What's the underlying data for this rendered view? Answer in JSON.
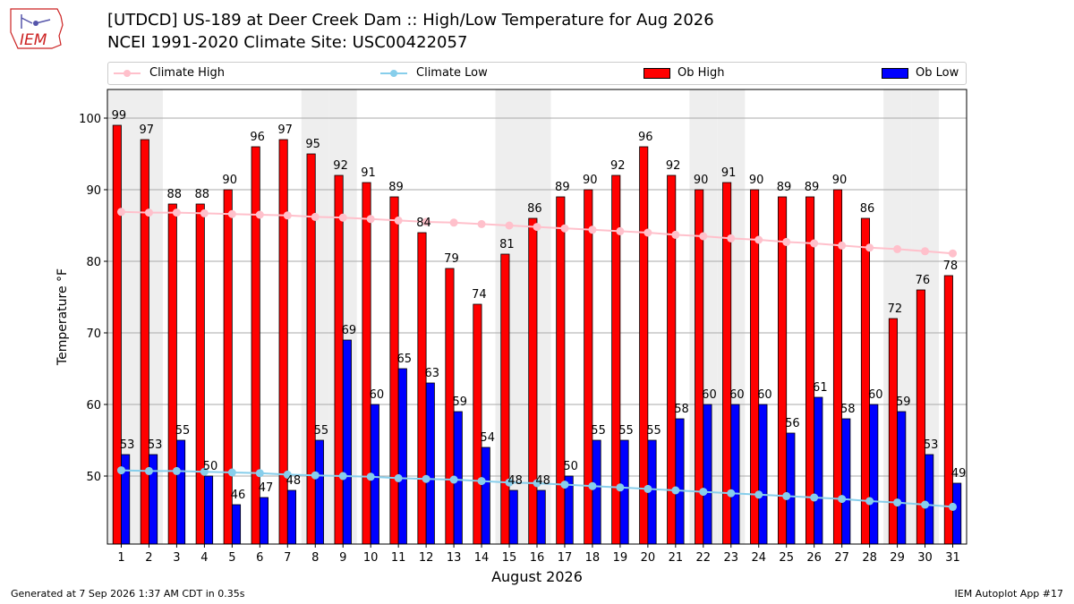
{
  "header": {
    "title_line1": "[UTDCD] US-189 at Deer Creek Dam  :: High/Low Temperature for Aug 2026",
    "title_line2": "NCEI 1991-2020 Climate Site: USC00422057"
  },
  "logo": {
    "text": "IEM",
    "color": "#cc2222"
  },
  "footer": {
    "left": "Generated at 7 Sep 2026 1:37 AM CDT in 0.35s",
    "right": "IEM Autoplot App #17"
  },
  "legend": {
    "climate_high": "Climate High",
    "climate_low": "Climate Low",
    "ob_high": "Ob High",
    "ob_low": "Ob Low",
    "placement": "top, above plot"
  },
  "colors": {
    "ob_high": "#ff0000",
    "ob_low": "#0000ff",
    "climate_high": "#ffc0cb",
    "climate_low": "#87ceeb",
    "weekend_shade": "#eeeeee",
    "grid": "#aaaaaa"
  },
  "chart_data": {
    "type": "bar",
    "xlabel": "August 2026",
    "ylabel": "Temperature °F",
    "ylim": [
      40.5,
      104
    ],
    "yticks": [
      50,
      60,
      70,
      80,
      90,
      100
    ],
    "grid": true,
    "categories": [
      "1",
      "2",
      "3",
      "4",
      "5",
      "6",
      "7",
      "8",
      "9",
      "10",
      "11",
      "12",
      "13",
      "14",
      "15",
      "16",
      "17",
      "18",
      "19",
      "20",
      "21",
      "22",
      "23",
      "24",
      "25",
      "26",
      "27",
      "28",
      "29",
      "30",
      "31"
    ],
    "weekend_days": [
      1,
      2,
      8,
      9,
      15,
      16,
      22,
      23,
      29,
      30
    ],
    "series": [
      {
        "name": "Ob High",
        "kind": "bar",
        "values": [
          99,
          97,
          88,
          88,
          90,
          96,
          97,
          95,
          92,
          91,
          89,
          84,
          79,
          74,
          81,
          86,
          89,
          90,
          92,
          96,
          92,
          90,
          91,
          90,
          89,
          89,
          90,
          86,
          72,
          76,
          78
        ],
        "labels": [
          "99",
          "97",
          "88",
          "88",
          "90",
          "96",
          "97",
          "95",
          "92",
          "91",
          "89",
          "84",
          "79",
          "74",
          "81",
          "86",
          "89",
          "90",
          "92",
          "96",
          "92",
          "90",
          "91",
          "90",
          "89",
          "89",
          "90",
          "86",
          "72",
          "76",
          "78"
        ]
      },
      {
        "name": "Ob Low",
        "kind": "bar",
        "values": [
          53,
          53,
          55,
          50,
          46,
          47,
          48,
          55,
          69,
          60,
          65,
          63,
          59,
          54,
          48,
          48,
          50,
          55,
          55,
          55,
          58,
          60,
          60,
          60,
          56,
          61,
          58,
          60,
          59,
          53,
          49
        ],
        "labels": [
          "53",
          "53",
          "55",
          "50",
          "46",
          "47",
          "48",
          "55",
          "69",
          "60",
          "65",
          "63",
          "59",
          "54",
          "48",
          "48",
          "50",
          "55",
          "55",
          "55",
          "58",
          "60",
          "60",
          "60",
          "56",
          "61",
          "58",
          "60",
          "59",
          "53",
          "49"
        ]
      },
      {
        "name": "Climate High",
        "kind": "line",
        "values": [
          86.9,
          86.8,
          86.8,
          86.7,
          86.6,
          86.5,
          86.4,
          86.2,
          86.1,
          85.9,
          85.7,
          85.5,
          85.4,
          85.2,
          85.0,
          84.8,
          84.6,
          84.4,
          84.2,
          84.0,
          83.7,
          83.5,
          83.2,
          83.0,
          82.7,
          82.5,
          82.2,
          81.9,
          81.7,
          81.4,
          81.1
        ]
      },
      {
        "name": "Climate Low",
        "kind": "line",
        "values": [
          50.8,
          50.7,
          50.7,
          50.6,
          50.5,
          50.4,
          50.2,
          50.1,
          50.0,
          49.9,
          49.7,
          49.6,
          49.5,
          49.3,
          49.1,
          49.0,
          48.8,
          48.6,
          48.4,
          48.2,
          48.0,
          47.8,
          47.6,
          47.4,
          47.2,
          47.0,
          46.8,
          46.5,
          46.3,
          46.0,
          45.7
        ]
      }
    ]
  }
}
